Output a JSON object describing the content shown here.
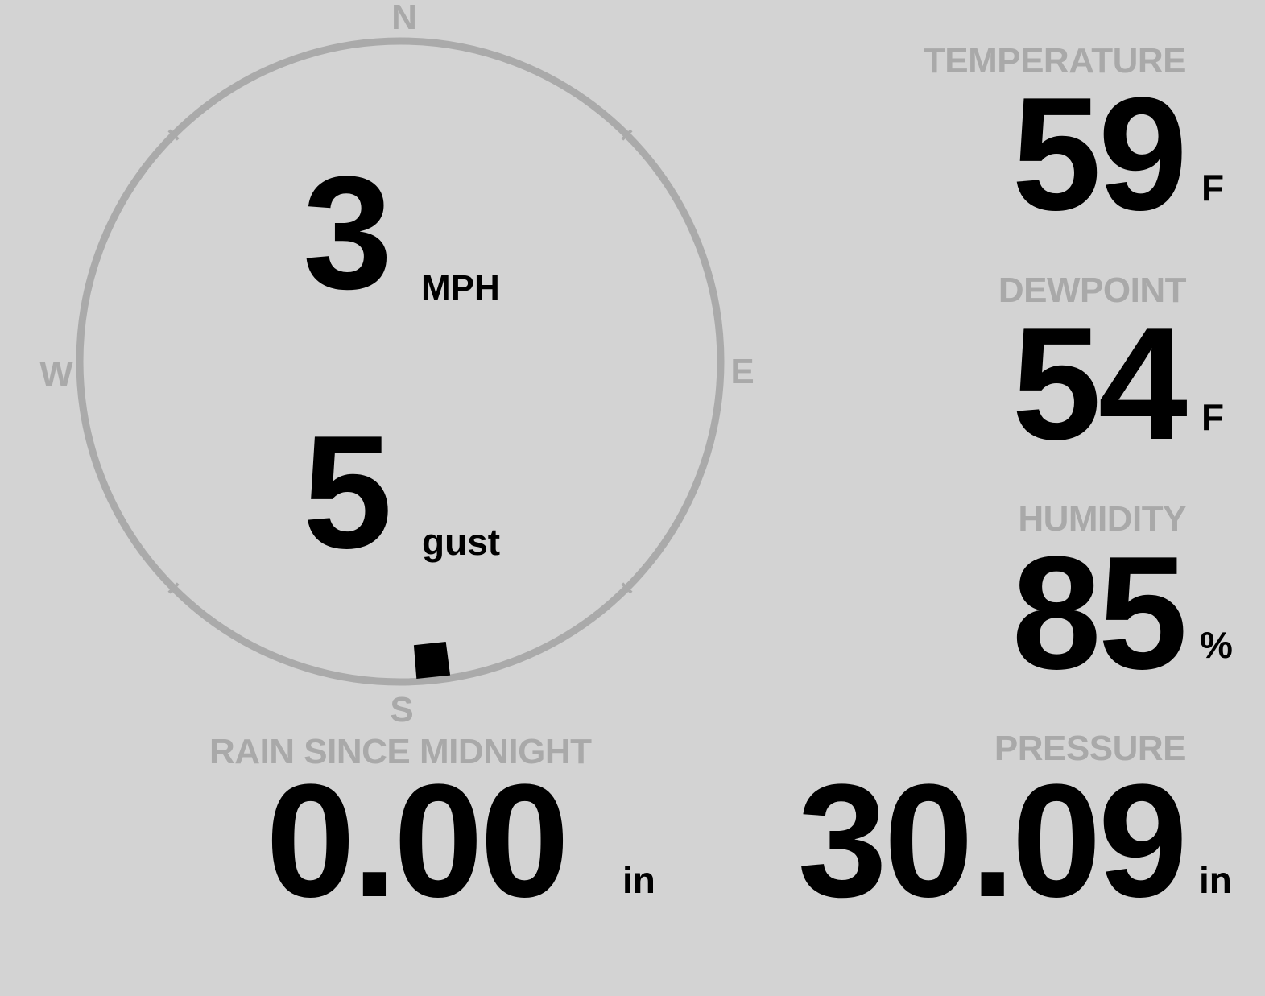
{
  "colors": {
    "background": "#d3d3d3",
    "muted": "#a9a9a9",
    "value": "#000000"
  },
  "compass": {
    "north": "N",
    "south": "S",
    "east": "E",
    "west": "W",
    "wind_direction_deg": 174
  },
  "wind": {
    "speed": "3",
    "speed_unit": "MPH",
    "gust": "5",
    "gust_unit": "gust"
  },
  "temperature": {
    "label": "TEMPERATURE",
    "value": "59",
    "unit": "F"
  },
  "dewpoint": {
    "label": "DEWPOINT",
    "value": "54",
    "unit": "F"
  },
  "humidity": {
    "label": "HUMIDITY",
    "value": "85",
    "unit": "%"
  },
  "rain": {
    "label": "RAIN SINCE MIDNIGHT",
    "value": "0.00",
    "unit": "in"
  },
  "pressure": {
    "label": "PRESSURE",
    "value": "30.09",
    "unit": "in"
  }
}
